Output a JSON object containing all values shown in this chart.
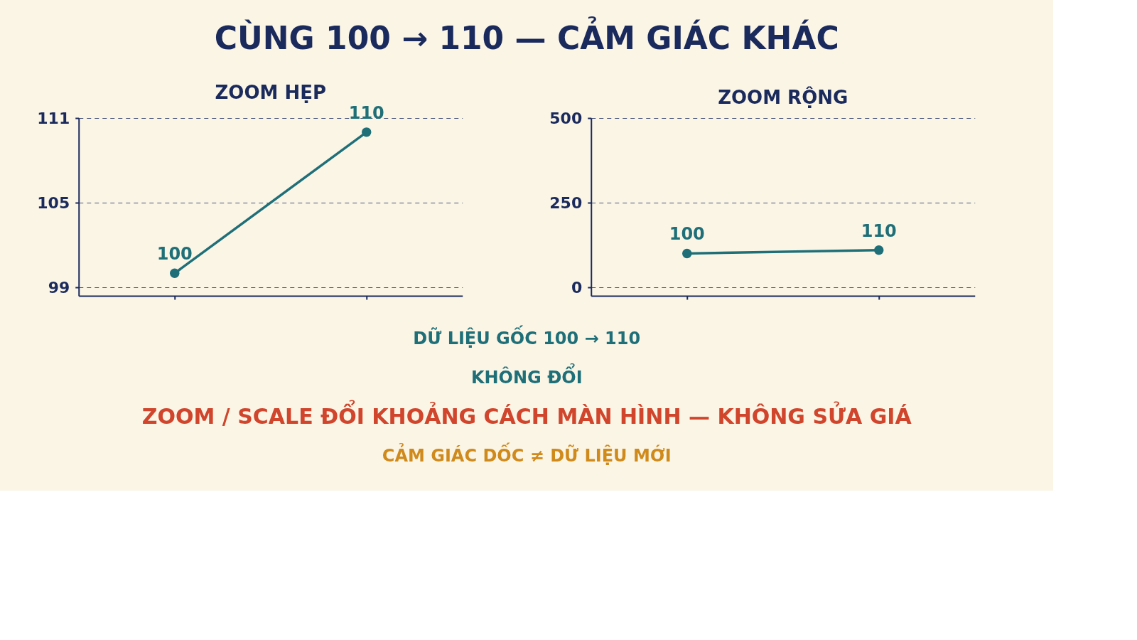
{
  "chart_data": [
    {
      "type": "other",
      "title": "CÙNG 100 → 110 — CẢM GIÁC KHÁC"
    },
    {
      "type": "line",
      "title": "ZOOM HẸP",
      "categories": [
        null,
        null
      ],
      "series": [
        {
          "color": "#1f6f78",
          "values": [
            100,
            110
          ]
        }
      ],
      "ylim": [
        98.4,
        111
      ],
      "yticks": [
        99,
        105,
        111
      ],
      "grid": "y",
      "marker": "circle",
      "line_style": "solid",
      "data_labels": true,
      "tick_labels": "y"
    },
    {
      "type": "line",
      "title": "ZOOM RỘNG",
      "categories": [
        null,
        null
      ],
      "series": [
        {
          "color": "#1f6f78",
          "values": [
            100,
            110
          ]
        }
      ],
      "ylim": [
        -25,
        500
      ],
      "yticks": [
        0,
        250,
        500
      ],
      "grid": "y",
      "marker": "circle",
      "line_style": "solid",
      "data_labels": true,
      "tick_labels": "y"
    },
    {
      "type": "other",
      "annotations": [
        "DỮ LIỆU GỐC 100 → 110",
        "KHÔNG ĐỔI",
        "ZOOM / SCALE ĐỔI KHOẢNG CÁCH MÀN HÌNH — KHÔNG SỬA GIÁ",
        "CẢM GIÁC DỐC ≠ DỮ LIỆU MỚI"
      ]
    }
  ]
}
